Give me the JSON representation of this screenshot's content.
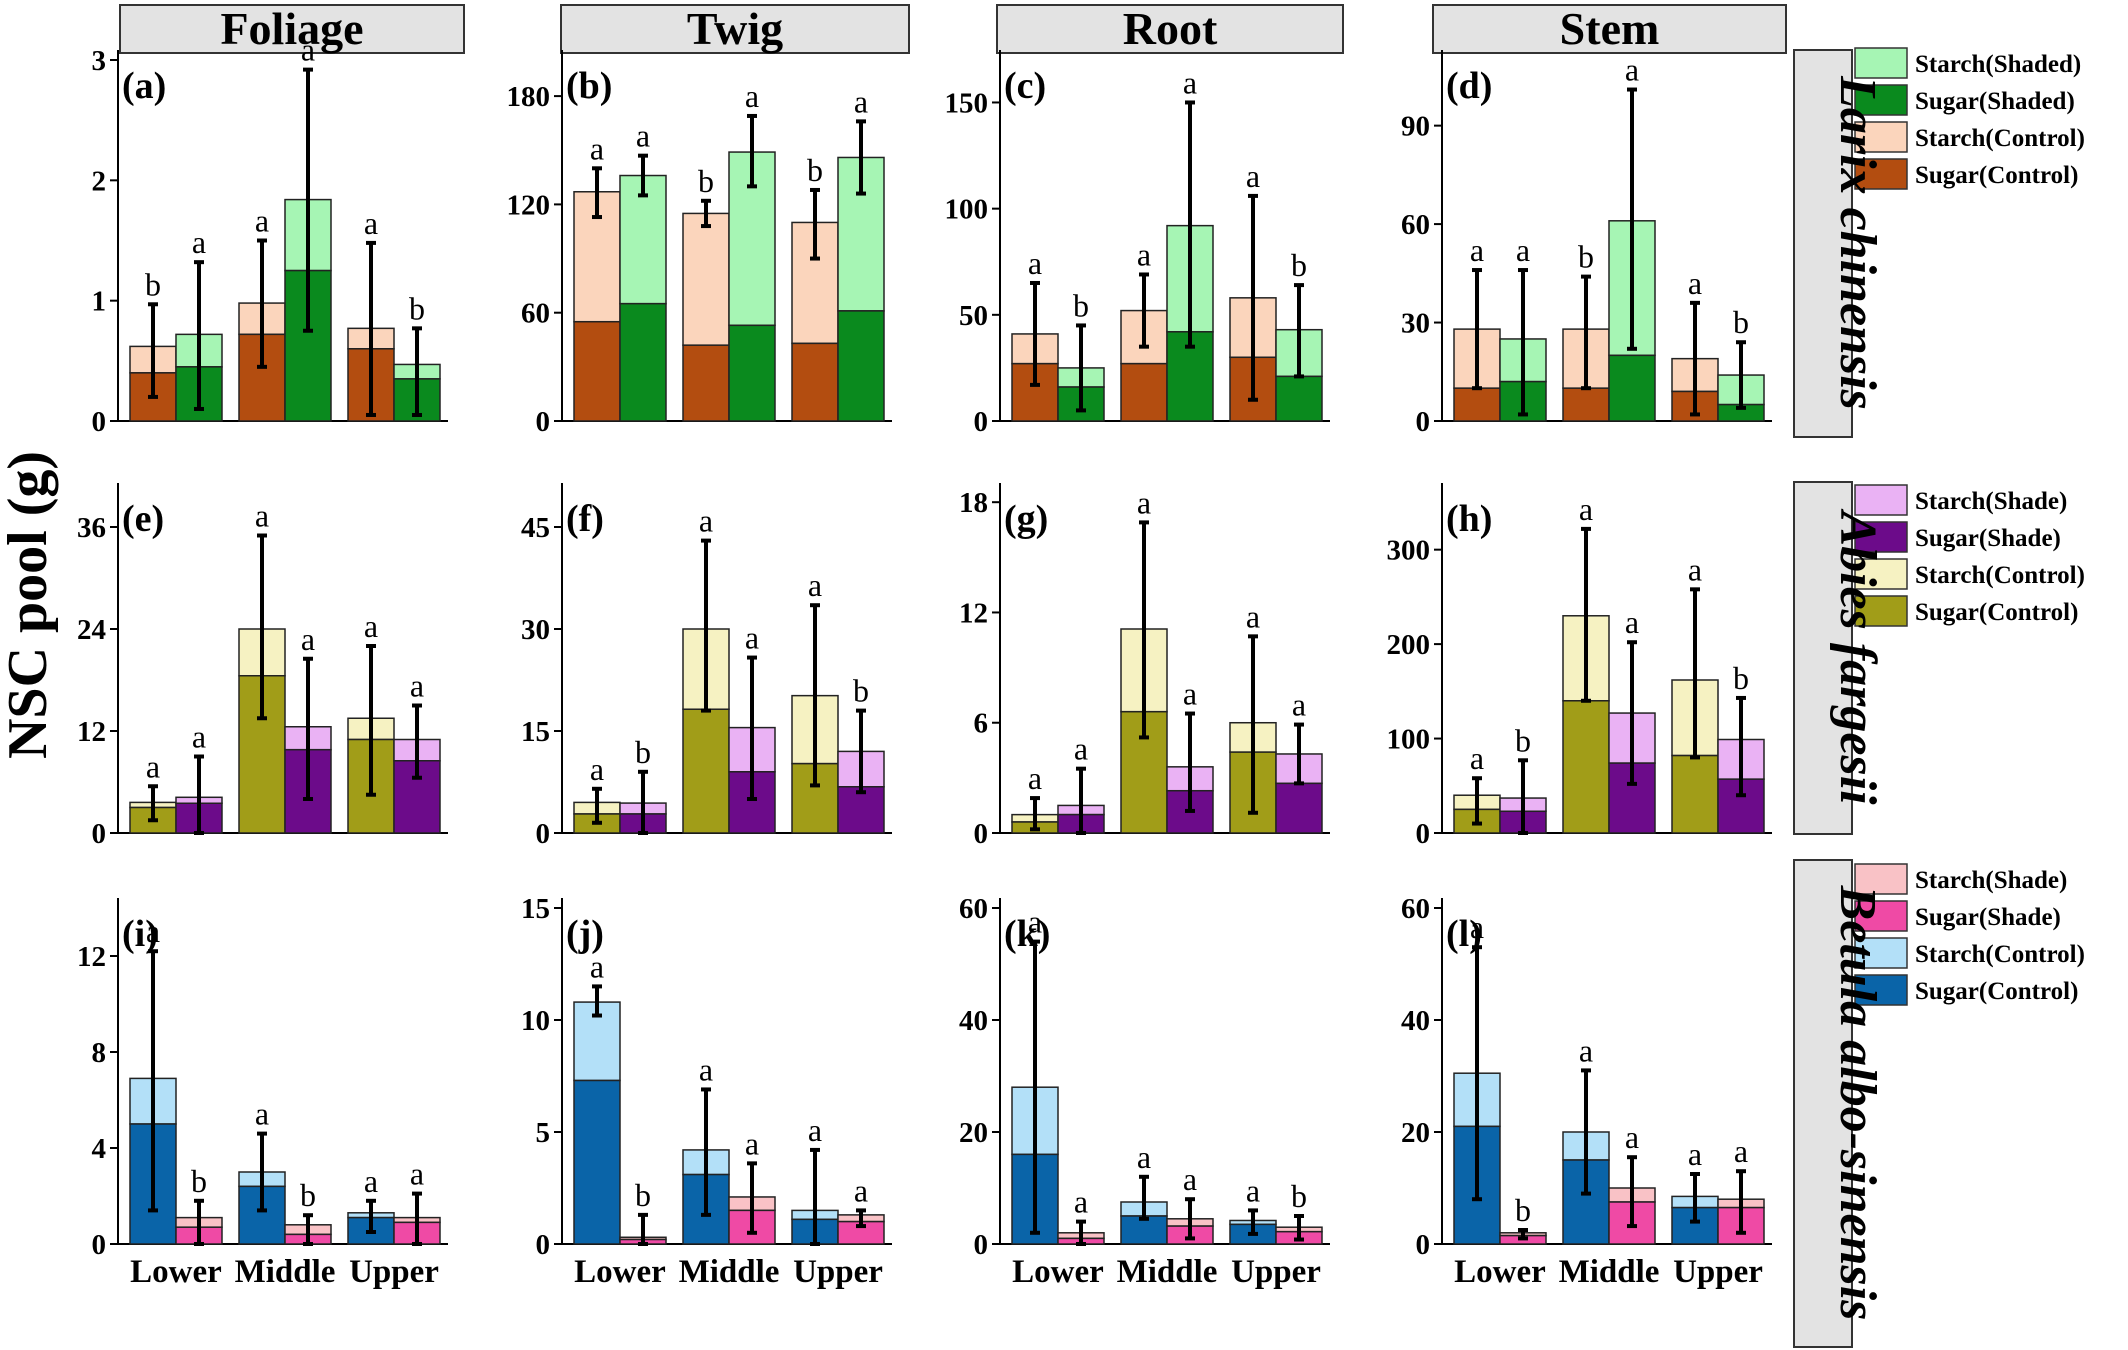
{
  "figure": {
    "ylabel": "NSC pool (g)",
    "columns": [
      "Foliage",
      "Twig",
      "Root",
      "Stem"
    ],
    "categories": [
      "Lower",
      "Middle",
      "Upper"
    ],
    "rows": [
      {
        "species": "Larix chinensis",
        "legend": [
          {
            "label": "Starch(Shaded)",
            "color": "#a6f5b4"
          },
          {
            "label": "Sugar(Shaded)",
            "color": "#0a8a1e"
          },
          {
            "label": "Starch(Control)",
            "color": "#fbd5bc"
          },
          {
            "label": "Sugar(Control)",
            "color": "#b34d10"
          }
        ]
      },
      {
        "species": "Abies fargesii",
        "legend": [
          {
            "label": "Starch(Shade)",
            "color": "#eab2f4"
          },
          {
            "label": "Sugar(Shade)",
            "color": "#6c0b8a"
          },
          {
            "label": "Starch(Control)",
            "color": "#f6f2c2"
          },
          {
            "label": "Sugar(Control)",
            "color": "#a19d18"
          }
        ]
      },
      {
        "species": "Betula albo-sinensis",
        "legend": [
          {
            "label": "Starch(Shade)",
            "color": "#f9c2c6"
          },
          {
            "label": "Sugar(Shade)",
            "color": "#ef4aa5"
          },
          {
            "label": "Starch(Control)",
            "color": "#b3e0f8"
          },
          {
            "label": "Sugar(Control)",
            "color": "#0a64a8"
          }
        ]
      }
    ]
  },
  "chart_data": [
    {
      "type": "bar",
      "panel": "(a)",
      "row": 0,
      "col": 0,
      "ylim": [
        0,
        3
      ],
      "yticks": [
        0,
        1,
        2,
        3
      ],
      "categories": [
        "Lower",
        "Middle",
        "Upper"
      ],
      "series": [
        {
          "name": "Control",
          "sugar": [
            0.4,
            0.72,
            0.6
          ],
          "total": [
            0.62,
            0.98,
            0.77
          ],
          "err_low": [
            0.2,
            0.45,
            0.05
          ],
          "err_high": [
            0.97,
            1.5,
            1.48
          ],
          "letters": [
            "b",
            "a",
            "a"
          ]
        },
        {
          "name": "Shaded",
          "sugar": [
            0.45,
            1.25,
            0.35
          ],
          "total": [
            0.72,
            1.84,
            0.47
          ],
          "err_low": [
            0.1,
            0.75,
            0.05
          ],
          "err_high": [
            1.32,
            2.92,
            0.77
          ],
          "letters": [
            "a",
            "a",
            "b"
          ]
        }
      ]
    },
    {
      "type": "bar",
      "panel": "(b)",
      "row": 0,
      "col": 1,
      "ylim": [
        0,
        200
      ],
      "yticks": [
        0,
        60,
        120,
        180
      ],
      "categories": [
        "Lower",
        "Middle",
        "Upper"
      ],
      "series": [
        {
          "name": "Control",
          "sugar": [
            55,
            42,
            43
          ],
          "total": [
            127,
            115,
            110
          ],
          "err_low": [
            113,
            108,
            90
          ],
          "err_high": [
            140,
            122,
            128
          ],
          "letters": [
            "a",
            "b",
            "b"
          ]
        },
        {
          "name": "Shaded",
          "sugar": [
            65,
            53,
            61
          ],
          "total": [
            136,
            149,
            146
          ],
          "err_low": [
            125,
            130,
            126
          ],
          "err_high": [
            147,
            169,
            166
          ],
          "letters": [
            "a",
            "a",
            "a"
          ]
        }
      ]
    },
    {
      "type": "bar",
      "panel": "(c)",
      "row": 0,
      "col": 2,
      "ylim": [
        0,
        170
      ],
      "yticks": [
        0,
        50,
        100,
        150
      ],
      "categories": [
        "Lower",
        "Middle",
        "Upper"
      ],
      "series": [
        {
          "name": "Control",
          "sugar": [
            27,
            27,
            30
          ],
          "total": [
            41,
            52,
            58
          ],
          "err_low": [
            17,
            35,
            10
          ],
          "err_high": [
            65,
            69,
            106
          ],
          "letters": [
            "a",
            "a",
            "a"
          ]
        },
        {
          "name": "Shaded",
          "sugar": [
            16,
            42,
            21
          ],
          "total": [
            25,
            92,
            43
          ],
          "err_low": [
            5,
            35,
            21
          ],
          "err_high": [
            45,
            150,
            64
          ],
          "letters": [
            "b",
            "a",
            "b"
          ]
        }
      ]
    },
    {
      "type": "bar",
      "panel": "(d)",
      "row": 0,
      "col": 3,
      "ylim": [
        0,
        110
      ],
      "yticks": [
        0,
        30,
        60,
        90
      ],
      "categories": [
        "Lower",
        "Middle",
        "Upper"
      ],
      "series": [
        {
          "name": "Control",
          "sugar": [
            10,
            10,
            9
          ],
          "total": [
            28,
            28,
            19
          ],
          "err_low": [
            10,
            10,
            2
          ],
          "err_high": [
            46,
            44,
            36
          ],
          "letters": [
            "a",
            "b",
            "a"
          ]
        },
        {
          "name": "Shaded",
          "sugar": [
            12,
            20,
            5
          ],
          "total": [
            25,
            61,
            14
          ],
          "err_low": [
            2,
            22,
            4
          ],
          "err_high": [
            46,
            101,
            24
          ],
          "letters": [
            "a",
            "a",
            "b"
          ]
        }
      ]
    },
    {
      "type": "bar",
      "panel": "(e)",
      "row": 1,
      "col": 0,
      "ylim": [
        0,
        40
      ],
      "yticks": [
        0,
        12,
        24,
        36
      ],
      "categories": [
        "Lower",
        "Middle",
        "Upper"
      ],
      "series": [
        {
          "name": "Control",
          "sugar": [
            3,
            18.5,
            11
          ],
          "total": [
            3.6,
            24,
            13.5
          ],
          "err_low": [
            1.5,
            13.5,
            4.5
          ],
          "err_high": [
            5.5,
            35,
            22
          ],
          "letters": [
            "a",
            "a",
            "a"
          ]
        },
        {
          "name": "Shaded",
          "sugar": [
            3.5,
            9.8,
            8.5
          ],
          "total": [
            4.2,
            12.5,
            11
          ],
          "err_low": [
            0,
            4,
            6.5
          ],
          "err_high": [
            9,
            20.5,
            15
          ],
          "letters": [
            "a",
            "a",
            "a"
          ]
        }
      ]
    },
    {
      "type": "bar",
      "panel": "(f)",
      "row": 1,
      "col": 1,
      "ylim": [
        0,
        50
      ],
      "yticks": [
        0,
        15,
        30,
        45
      ],
      "categories": [
        "Lower",
        "Middle",
        "Upper"
      ],
      "series": [
        {
          "name": "Control",
          "sugar": [
            2.8,
            18.2,
            10.2
          ],
          "total": [
            4.5,
            30,
            20.2
          ],
          "err_low": [
            1.5,
            18,
            7
          ],
          "err_high": [
            6.5,
            43,
            33.5
          ],
          "letters": [
            "a",
            "a",
            "a"
          ]
        },
        {
          "name": "Shaded",
          "sugar": [
            2.8,
            9,
            6.8
          ],
          "total": [
            4.4,
            15.5,
            12
          ],
          "err_low": [
            0,
            5,
            6
          ],
          "err_high": [
            9,
            25.8,
            18
          ],
          "letters": [
            "b",
            "a",
            "b"
          ]
        }
      ]
    },
    {
      "type": "bar",
      "panel": "(g)",
      "row": 1,
      "col": 2,
      "ylim": [
        0,
        18.5
      ],
      "yticks": [
        0,
        6,
        12,
        18
      ],
      "categories": [
        "Lower",
        "Middle",
        "Upper"
      ],
      "series": [
        {
          "name": "Control",
          "sugar": [
            0.6,
            6.6,
            4.4
          ],
          "total": [
            1,
            11.1,
            6
          ],
          "err_low": [
            0.2,
            5.2,
            1.1
          ],
          "err_high": [
            1.9,
            16.9,
            10.7
          ],
          "letters": [
            "a",
            "a",
            "a"
          ]
        },
        {
          "name": "Shaded",
          "sugar": [
            1,
            2.3,
            2.7
          ],
          "total": [
            1.5,
            3.6,
            4.3
          ],
          "err_low": [
            0,
            1.2,
            2.7
          ],
          "err_high": [
            3.5,
            6.5,
            5.9
          ],
          "letters": [
            "a",
            "a",
            "a"
          ]
        }
      ]
    },
    {
      "type": "bar",
      "panel": "(h)",
      "row": 1,
      "col": 3,
      "ylim": [
        0,
        360
      ],
      "yticks": [
        0,
        100,
        200,
        300
      ],
      "categories": [
        "Lower",
        "Middle",
        "Upper"
      ],
      "series": [
        {
          "name": "Control",
          "sugar": [
            25,
            140,
            82
          ],
          "total": [
            40,
            230,
            162
          ],
          "err_low": [
            10,
            140,
            80
          ],
          "err_high": [
            58,
            322,
            258
          ],
          "letters": [
            "a",
            "a",
            "a"
          ]
        },
        {
          "name": "Shaded",
          "sugar": [
            23,
            74,
            57
          ],
          "total": [
            37,
            127,
            99
          ],
          "err_low": [
            0,
            52,
            40
          ],
          "err_high": [
            77,
            202,
            143
          ],
          "letters": [
            "b",
            "a",
            "b"
          ]
        }
      ]
    },
    {
      "type": "bar",
      "panel": "(i)",
      "row": 2,
      "col": 0,
      "ylim": [
        0,
        14
      ],
      "yticks": [
        0,
        4,
        8,
        12
      ],
      "categories": [
        "Lower",
        "Middle",
        "Upper"
      ],
      "series": [
        {
          "name": "Control",
          "sugar": [
            5,
            2.4,
            1.1
          ],
          "total": [
            6.9,
            3,
            1.3
          ],
          "err_low": [
            1.4,
            1.4,
            0.5
          ],
          "err_high": [
            12.2,
            4.6,
            1.8
          ],
          "letters": [
            "a",
            "a",
            "a"
          ]
        },
        {
          "name": "Shade",
          "sugar": [
            0.7,
            0.4,
            0.9
          ],
          "total": [
            1.1,
            0.8,
            1.1
          ],
          "err_low": [
            0,
            0,
            0
          ],
          "err_high": [
            1.8,
            1.2,
            2.1
          ],
          "letters": [
            "b",
            "b",
            "a"
          ]
        }
      ]
    },
    {
      "type": "bar",
      "panel": "(j)",
      "row": 2,
      "col": 1,
      "ylim": [
        0,
        15
      ],
      "yticks": [
        0,
        5,
        10,
        15
      ],
      "categories": [
        "Lower",
        "Middle",
        "Upper"
      ],
      "series": [
        {
          "name": "Control",
          "sugar": [
            7.3,
            3.1,
            1.1
          ],
          "total": [
            10.8,
            4.2,
            1.5
          ],
          "err_low": [
            10.2,
            1.3,
            0
          ],
          "err_high": [
            11.5,
            6.9,
            4.2
          ],
          "letters": [
            "a",
            "a",
            "a"
          ]
        },
        {
          "name": "Shade",
          "sugar": [
            0.2,
            1.5,
            1
          ],
          "total": [
            0.3,
            2.1,
            1.3
          ],
          "err_low": [
            0,
            0.5,
            0.8
          ],
          "err_high": [
            1.3,
            3.6,
            1.5
          ],
          "letters": [
            "b",
            "a",
            "a"
          ]
        }
      ]
    },
    {
      "type": "bar",
      "panel": "(k)",
      "row": 2,
      "col": 2,
      "ylim": [
        0,
        60
      ],
      "yticks": [
        0,
        20,
        40,
        60
      ],
      "categories": [
        "Lower",
        "Middle",
        "Upper"
      ],
      "series": [
        {
          "name": "Control",
          "sugar": [
            16,
            5,
            3.5
          ],
          "total": [
            28,
            7.5,
            4.2
          ],
          "err_low": [
            2,
            4.5,
            1.8
          ],
          "err_high": [
            54,
            12,
            6
          ],
          "letters": [
            "a",
            "a",
            "a"
          ]
        },
        {
          "name": "Shade",
          "sugar": [
            1,
            3.2,
            2.2
          ],
          "total": [
            2,
            4.5,
            3
          ],
          "err_low": [
            0,
            1,
            0.8
          ],
          "err_high": [
            4,
            8,
            5
          ],
          "letters": [
            "a",
            "a",
            "b"
          ]
        }
      ]
    },
    {
      "type": "bar",
      "panel": "(l)",
      "row": 2,
      "col": 3,
      "ylim": [
        0,
        60
      ],
      "yticks": [
        0,
        20,
        40,
        60
      ],
      "categories": [
        "Lower",
        "Middle",
        "Upper"
      ],
      "series": [
        {
          "name": "Control",
          "sugar": [
            21,
            15,
            6.5
          ],
          "total": [
            30.5,
            20,
            8.5
          ],
          "err_low": [
            8,
            9,
            4
          ],
          "err_high": [
            53,
            31,
            12.5
          ],
          "letters": [
            "a",
            "a",
            "a"
          ]
        },
        {
          "name": "Shade",
          "sugar": [
            1.5,
            7.5,
            6.5
          ],
          "total": [
            2,
            10,
            8
          ],
          "err_low": [
            1,
            3.2,
            2
          ],
          "err_high": [
            2.5,
            15.5,
            13
          ],
          "letters": [
            "b",
            "a",
            "a"
          ]
        }
      ]
    }
  ]
}
